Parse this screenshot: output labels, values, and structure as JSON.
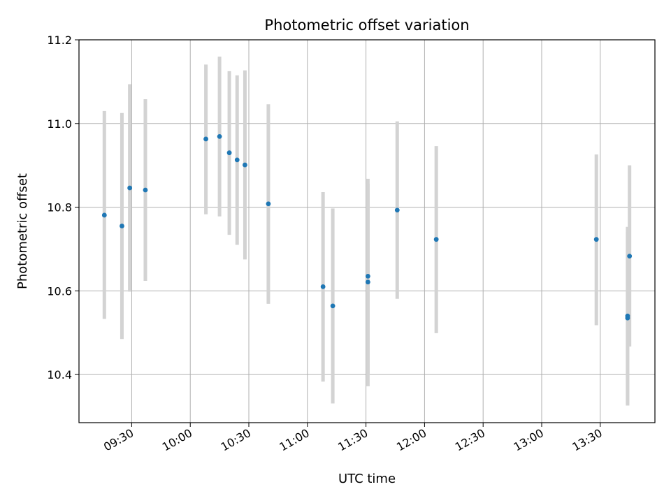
{
  "chart_data": {
    "type": "scatter",
    "title": "Photometric offset variation",
    "xlabel": "UTC time",
    "ylabel": "Photometric offset",
    "x_axis_kind": "time",
    "xlim": [
      "09:03",
      "13:58"
    ],
    "ylim": [
      10.285,
      11.2
    ],
    "grid": true,
    "x_ticks": [
      "09:30",
      "10:00",
      "10:30",
      "11:00",
      "11:30",
      "12:00",
      "12:30",
      "13:00",
      "13:30"
    ],
    "y_ticks": [
      "10.4",
      "10.6",
      "10.8",
      "11.0",
      "11.2"
    ],
    "colors": {
      "marker": "#1f77b4",
      "errorbar": "#d3d3d3",
      "grid": "#b0b0b0",
      "axes": "#000000"
    },
    "points": [
      {
        "time": "09:16",
        "y": 10.781,
        "yerr_low": 10.533,
        "yerr_high": 11.03
      },
      {
        "time": "09:25",
        "y": 10.755,
        "yerr_low": 10.485,
        "yerr_high": 11.025
      },
      {
        "time": "09:29",
        "y": 10.846,
        "yerr_low": 10.598,
        "yerr_high": 11.094
      },
      {
        "time": "09:37",
        "y": 10.841,
        "yerr_low": 10.624,
        "yerr_high": 11.058
      },
      {
        "time": "10:08",
        "y": 10.963,
        "yerr_low": 10.783,
        "yerr_high": 11.141
      },
      {
        "time": "10:15",
        "y": 10.969,
        "yerr_low": 10.778,
        "yerr_high": 11.16
      },
      {
        "time": "10:20",
        "y": 10.93,
        "yerr_low": 10.734,
        "yerr_high": 11.125
      },
      {
        "time": "10:24",
        "y": 10.913,
        "yerr_low": 10.71,
        "yerr_high": 11.115
      },
      {
        "time": "10:28",
        "y": 10.901,
        "yerr_low": 10.675,
        "yerr_high": 11.127
      },
      {
        "time": "10:40",
        "y": 10.808,
        "yerr_low": 10.569,
        "yerr_high": 11.046
      },
      {
        "time": "11:08",
        "y": 10.61,
        "yerr_low": 10.383,
        "yerr_high": 10.836
      },
      {
        "time": "11:13",
        "y": 10.564,
        "yerr_low": 10.331,
        "yerr_high": 10.797
      },
      {
        "time": "11:31",
        "y": 10.635,
        "yerr_low": 10.4,
        "yerr_high": 10.868
      },
      {
        "time": "11:31",
        "y": 10.621,
        "yerr_low": 10.372,
        "yerr_high": 10.856
      },
      {
        "time": "11:46",
        "y": 10.793,
        "yerr_low": 10.581,
        "yerr_high": 11.005
      },
      {
        "time": "12:06",
        "y": 10.723,
        "yerr_low": 10.499,
        "yerr_high": 10.946
      },
      {
        "time": "13:28",
        "y": 10.723,
        "yerr_low": 10.518,
        "yerr_high": 10.926
      },
      {
        "time": "13:44",
        "y": 10.535,
        "yerr_low": 10.328,
        "yerr_high": 10.74
      },
      {
        "time": "13:44",
        "y": 10.54,
        "yerr_low": 10.326,
        "yerr_high": 10.753
      },
      {
        "time": "13:45",
        "y": 10.683,
        "yerr_low": 10.467,
        "yerr_high": 10.9
      }
    ]
  }
}
